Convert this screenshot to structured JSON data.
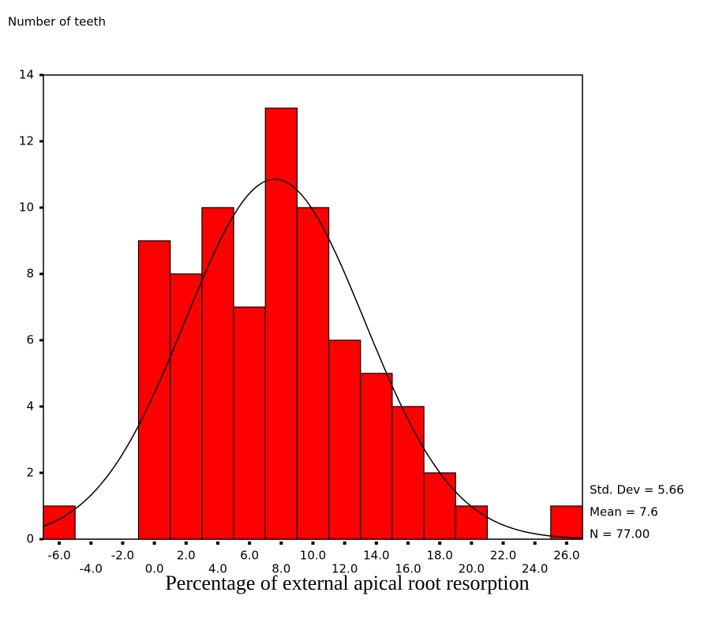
{
  "chart_data": {
    "type": "histogram",
    "y_label": "Number of teeth",
    "x_label": "Percentage of external apical root resorption",
    "bins": [
      -7,
      -5,
      -3,
      -1,
      1,
      3,
      5,
      7,
      9,
      11,
      13,
      15,
      17,
      19,
      21,
      23,
      25,
      27
    ],
    "values": [
      1,
      0,
      0,
      9,
      8,
      10,
      7,
      13,
      10,
      6,
      5,
      4,
      2,
      1,
      0,
      0,
      1
    ],
    "color": "#ff0000",
    "xlim": [
      -7,
      27
    ],
    "xticks": [
      {
        "value": -6,
        "label": "-6.0"
      },
      {
        "value": -4,
        "label": "-4.0"
      },
      {
        "value": -2,
        "label": "-2.0"
      },
      {
        "value": 0,
        "label": "0.0"
      },
      {
        "value": 2,
        "label": "2.0"
      },
      {
        "value": 4,
        "label": "4.0"
      },
      {
        "value": 6,
        "label": "6.0"
      },
      {
        "value": 8,
        "label": "8.0"
      },
      {
        "value": 10,
        "label": "10.0"
      },
      {
        "value": 12,
        "label": "12.0"
      },
      {
        "value": 14,
        "label": "14.0"
      },
      {
        "value": 16,
        "label": "16.0"
      },
      {
        "value": 18,
        "label": "18.0"
      },
      {
        "value": 20,
        "label": "20.0"
      },
      {
        "value": 22,
        "label": "22.0"
      },
      {
        "value": 24,
        "label": "24.0"
      },
      {
        "value": 26,
        "label": "26.0"
      }
    ],
    "ylim": [
      0,
      14
    ],
    "yticks": [
      0,
      2,
      4,
      6,
      8,
      10,
      12,
      14
    ],
    "normal_curve": {
      "std_dev": 5.66,
      "mean": 7.6,
      "n": 77,
      "labels": [
        "Std. Dev = 5.66",
        "Mean = 7.6",
        "N = 77.00"
      ]
    }
  }
}
